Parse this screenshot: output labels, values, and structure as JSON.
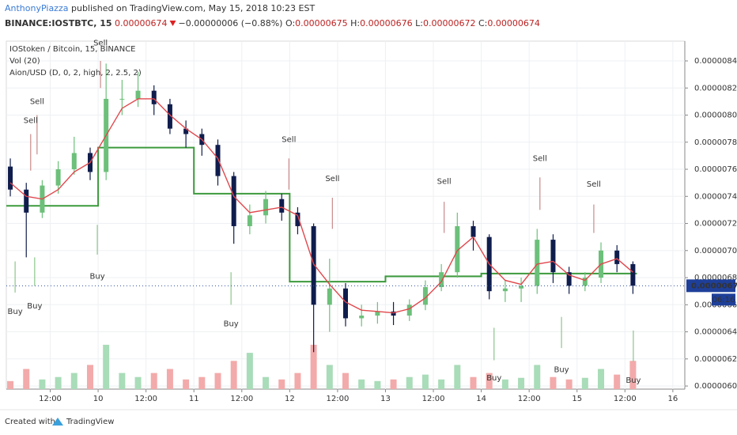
{
  "header": {
    "author": "AnthonyPiazza",
    "published": "published on TradingView.com, May 15, 2018 10:23 EST",
    "symbol": "BINANCE:IOSTBTC, 15",
    "last": "0.00000674",
    "change": "−0.00000006 (−0.88%)",
    "ohlc": [
      [
        "O:",
        "0.00000675"
      ],
      [
        "H:",
        "0.00000676"
      ],
      [
        "L:",
        "0.00000672"
      ],
      [
        "C:",
        "0.00000674"
      ]
    ]
  },
  "footer": {
    "created": "Created with",
    "brand": "TradingView"
  },
  "chart_data": {
    "type": "candlestick",
    "legend": [
      "IOStoken / Bitcoin, 15, BINANCE",
      "Vol (20)",
      "Aion/USD (D, 0, 2, high, 2, 2.5, 2)"
    ],
    "xlim": [
      1,
      171
    ],
    "xticks": [
      {
        "value": 12,
        "label": "12:00"
      },
      {
        "value": 24,
        "label": "10"
      },
      {
        "value": 36,
        "label": "12:00"
      },
      {
        "value": 48,
        "label": "11"
      },
      {
        "value": 60,
        "label": "12:00"
      },
      {
        "value": 72,
        "label": "12"
      },
      {
        "value": 84,
        "label": "12:00"
      },
      {
        "value": 96,
        "label": "13"
      },
      {
        "value": 108,
        "label": "12:00"
      },
      {
        "value": 120,
        "label": "14"
      },
      {
        "value": 132,
        "label": "12:00"
      },
      {
        "value": 144,
        "label": "15"
      },
      {
        "value": 156,
        "label": "12:00"
      },
      {
        "value": 168,
        "label": "16"
      }
    ],
    "ylim": [
      5.977e-06,
      8.546e-06
    ],
    "yticks": [
      {
        "value": 6e-06,
        "label": "0.00000600"
      },
      {
        "value": 6.2e-06,
        "label": "0.00000620"
      },
      {
        "value": 6.4e-06,
        "label": "0.00000640"
      },
      {
        "value": 6.6e-06,
        "label": "0.00000660"
      },
      {
        "value": 6.8e-06,
        "label": "0.00000680"
      },
      {
        "value": 7e-06,
        "label": "0.00000700"
      },
      {
        "value": 7.2e-06,
        "label": "0.00000720"
      },
      {
        "value": 7.4e-06,
        "label": "0.00000740"
      },
      {
        "value": 7.6e-06,
        "label": "0.00000760"
      },
      {
        "value": 7.8e-06,
        "label": "0.00000780"
      },
      {
        "value": 8e-06,
        "label": "0.00000800"
      },
      {
        "value": 8.2e-06,
        "label": "0.00000820"
      },
      {
        "value": 8.4e-06,
        "label": "0.00000840"
      }
    ],
    "grid": true,
    "up_color": "#6cc07a",
    "down_color": "#0f1d4d",
    "x": [
      2,
      6,
      10,
      14,
      18,
      22,
      26,
      30,
      34,
      38,
      42,
      46,
      50,
      54,
      58,
      62,
      66,
      70,
      74,
      78,
      82,
      86,
      90,
      94,
      98,
      102,
      106,
      110,
      114,
      118,
      122,
      126,
      130,
      134,
      138,
      142,
      146,
      150,
      154,
      158
    ],
    "open": [
      7.62e-06,
      7.45e-06,
      7.28e-06,
      7.48e-06,
      7.6e-06,
      7.72e-06,
      7.58e-06,
      8.12e-06,
      8.12e-06,
      8.18e-06,
      8.08e-06,
      7.9e-06,
      7.86e-06,
      7.78e-06,
      7.55e-06,
      7.18e-06,
      7.26e-06,
      7.38e-06,
      7.28e-06,
      7.18e-06,
      6.6e-06,
      6.72e-06,
      6.5e-06,
      6.52e-06,
      6.55e-06,
      6.52e-06,
      6.6e-06,
      6.73e-06,
      6.84e-06,
      7.18e-06,
      7.1e-06,
      6.7e-06,
      6.72e-06,
      6.74e-06,
      7.08e-06,
      6.84e-06,
      6.74e-06,
      6.8e-06,
      7e-06,
      6.9e-06
    ],
    "high": [
      7.68e-06,
      7.5e-06,
      7.52e-06,
      7.66e-06,
      7.84e-06,
      7.76e-06,
      8.38e-06,
      8.26e-06,
      8.32e-06,
      8.22e-06,
      8.12e-06,
      7.96e-06,
      7.9e-06,
      7.82e-06,
      7.58e-06,
      7.34e-06,
      7.44e-06,
      7.42e-06,
      7.32e-06,
      7.2e-06,
      6.94e-06,
      6.76e-06,
      6.6e-06,
      6.62e-06,
      6.62e-06,
      6.64e-06,
      6.78e-06,
      6.9e-06,
      7.28e-06,
      7.22e-06,
      7.12e-06,
      6.78e-06,
      6.8e-06,
      7.16e-06,
      7.12e-06,
      6.88e-06,
      6.84e-06,
      7.06e-06,
      7.04e-06,
      6.92e-06
    ],
    "low": [
      7.4e-06,
      6.95e-06,
      7.24e-06,
      7.42e-06,
      7.56e-06,
      7.52e-06,
      7.52e-06,
      8e-06,
      8.06e-06,
      8e-06,
      7.86e-06,
      7.76e-06,
      7.7e-06,
      7.48e-06,
      7.05e-06,
      7.12e-06,
      7.2e-06,
      7.22e-06,
      7.12e-06,
      6.25e-06,
      6.4e-06,
      6.44e-06,
      6.44e-06,
      6.46e-06,
      6.45e-06,
      6.48e-06,
      6.56e-06,
      6.7e-06,
      6.8e-06,
      7e-06,
      6.64e-06,
      6.62e-06,
      6.62e-06,
      6.68e-06,
      6.76e-06,
      6.68e-06,
      6.7e-06,
      6.76e-06,
      6.84e-06,
      6.68e-06
    ],
    "close": [
      7.45e-06,
      7.28e-06,
      7.48e-06,
      7.6e-06,
      7.72e-06,
      7.58e-06,
      8.12e-06,
      8.12e-06,
      8.18e-06,
      8.08e-06,
      7.9e-06,
      7.86e-06,
      7.78e-06,
      7.55e-06,
      7.18e-06,
      7.26e-06,
      7.38e-06,
      7.28e-06,
      7.18e-06,
      6.6e-06,
      6.72e-06,
      6.5e-06,
      6.52e-06,
      6.55e-06,
      6.52e-06,
      6.6e-06,
      6.73e-06,
      6.84e-06,
      7.18e-06,
      7.1e-06,
      6.7e-06,
      6.72e-06,
      6.74e-06,
      7.08e-06,
      6.84e-06,
      6.74e-06,
      6.8e-06,
      7e-06,
      6.9e-06,
      6.74e-06
    ],
    "ma": {
      "color": "#e0474c",
      "values": [
        7.5e-06,
        7.4e-06,
        7.38e-06,
        7.45e-06,
        7.58e-06,
        7.65e-06,
        7.85e-06,
        8.05e-06,
        8.12e-06,
        8.12e-06,
        8e-06,
        7.9e-06,
        7.82e-06,
        7.68e-06,
        7.4e-06,
        7.28e-06,
        7.3e-06,
        7.32e-06,
        7.26e-06,
        6.9e-06,
        6.75e-06,
        6.62e-06,
        6.56e-06,
        6.55e-06,
        6.54e-06,
        6.57e-06,
        6.65e-06,
        6.77e-06,
        7e-06,
        7.1e-06,
        6.9e-06,
        6.78e-06,
        6.75e-06,
        6.9e-06,
        6.92e-06,
        6.82e-06,
        6.78e-06,
        6.9e-06,
        6.94e-06,
        6.84e-06
      ]
    },
    "aion": {
      "color": "#3c9a3c",
      "x": [
        1,
        24,
        48,
        72,
        96,
        120,
        159
      ],
      "values": [
        7.33e-06,
        7.76e-06,
        7.42e-06,
        6.77e-06,
        6.81e-06,
        6.83e-06,
        6.83e-06
      ]
    },
    "volume": {
      "vlim": [
        0,
        100
      ],
      "up_color": "#a9dcb8",
      "down_color": "#f3aaaa",
      "values": [
        10,
        25,
        12,
        15,
        20,
        30,
        55,
        20,
        15,
        20,
        25,
        12,
        15,
        20,
        35,
        45,
        15,
        12,
        20,
        55,
        30,
        20,
        12,
        10,
        12,
        15,
        18,
        12,
        30,
        15,
        20,
        12,
        14,
        30,
        15,
        12,
        14,
        25,
        18,
        35
      ]
    },
    "signals": {
      "sell_color": "#a83838",
      "sell_line": "#c98a8a",
      "buy_color": "#3c9a3c",
      "buy_line": "#8cc68c",
      "items": [
        {
          "label": "Sell",
          "x": 24.6,
          "y": 8.53e-06,
          "line": [
            8.4e-06,
            8.2e-06
          ]
        },
        {
          "label": "Sell",
          "x": 8.7,
          "y": 8.1e-06,
          "line": [
            8e-06,
            7.71e-06
          ]
        },
        {
          "label": "Sell",
          "x": 7.1,
          "y": 7.96e-06,
          "line": [
            7.86e-06,
            7.59e-06
          ]
        },
        {
          "label": "Sell",
          "x": 71.8,
          "y": 7.82e-06,
          "line": [
            7.68e-06,
            7.45e-06
          ]
        },
        {
          "label": "Sell",
          "x": 82.7,
          "y": 7.53e-06,
          "line": [
            7.39e-06,
            7.16e-06
          ]
        },
        {
          "label": "Sell",
          "x": 110.7,
          "y": 7.51e-06,
          "line": [
            7.36e-06,
            7.13e-06
          ]
        },
        {
          "label": "Sell",
          "x": 134.7,
          "y": 7.68e-06,
          "line": [
            7.54e-06,
            7.3e-06
          ]
        },
        {
          "label": "Sell",
          "x": 148.2,
          "y": 7.49e-06,
          "line": [
            7.34e-06,
            7.13e-06
          ]
        },
        {
          "label": "Buy",
          "x": 3.2,
          "y": 6.55e-06,
          "line": [
            6.92e-06,
            6.69e-06
          ]
        },
        {
          "label": "Buy",
          "x": 8.1,
          "y": 6.59e-06,
          "line": [
            6.95e-06,
            6.74e-06
          ]
        },
        {
          "label": "Buy",
          "x": 23.8,
          "y": 6.81e-06,
          "line": [
            7.19e-06,
            6.97e-06
          ]
        },
        {
          "label": "Buy",
          "x": 57.3,
          "y": 6.46e-06,
          "line": [
            6.84e-06,
            6.6e-06
          ]
        },
        {
          "label": "Buy",
          "x": 123.2,
          "y": 6.06e-06,
          "line": [
            6.43e-06,
            6.19e-06
          ]
        },
        {
          "label": "Buy",
          "x": 140.1,
          "y": 6.12e-06,
          "line": [
            6.51e-06,
            6.28e-06
          ]
        },
        {
          "label": "Buy",
          "x": 158.1,
          "y": 6.04e-06,
          "line": [
            6.41e-06,
            6.18e-06
          ]
        }
      ]
    },
    "last_price": {
      "value": 6.74e-06,
      "label": "0.00000674"
    },
    "countdown": "06:16"
  }
}
